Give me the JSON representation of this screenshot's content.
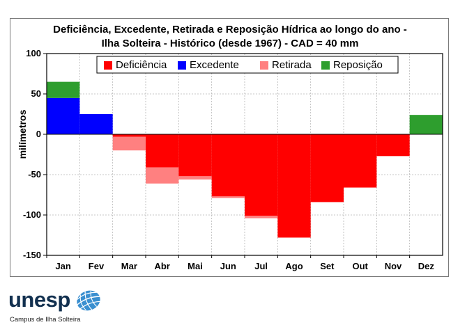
{
  "chart_data": {
    "type": "bar",
    "title_lines": [
      "Deficiência, Excedente, Retirada e Reposição Hídrica ao longo do ano  -",
      "Ilha Solteira - Histórico (desde 1967) - CAD = 40 mm"
    ],
    "xlabel": "",
    "ylabel": "milímetros",
    "ylim": [
      -150,
      100
    ],
    "yticks": [
      100,
      50,
      0,
      -50,
      -100,
      -150
    ],
    "grid": true,
    "legend_position": "top",
    "categories": [
      "Jan",
      "Fev",
      "Mar",
      "Abr",
      "Mai",
      "Jun",
      "Jul",
      "Ago",
      "Set",
      "Out",
      "Nov",
      "Dez"
    ],
    "series": [
      {
        "name": "Deficiência",
        "color": "#ff0000",
        "values": [
          0,
          0,
          -3,
          -41,
          -52,
          -77,
          -101,
          -128,
          -84,
          -66,
          -27,
          0
        ]
      },
      {
        "name": "Excedente",
        "color": "#0000ff",
        "values": [
          45,
          25,
          0,
          0,
          0,
          0,
          0,
          0,
          0,
          0,
          0,
          0
        ]
      },
      {
        "name": "Retirada",
        "color": "#ff8080",
        "values": [
          0,
          0,
          -17,
          -20,
          -4,
          -2,
          -3,
          0,
          0,
          0,
          0,
          0
        ]
      },
      {
        "name": "Reposição",
        "color": "#2e9e2e",
        "values": [
          20,
          0,
          0,
          0,
          0,
          0,
          0,
          0,
          0,
          0,
          0,
          24
        ]
      }
    ]
  },
  "logo": {
    "text": "unesp",
    "subtitle": "Campus de Ilha Solteira"
  }
}
